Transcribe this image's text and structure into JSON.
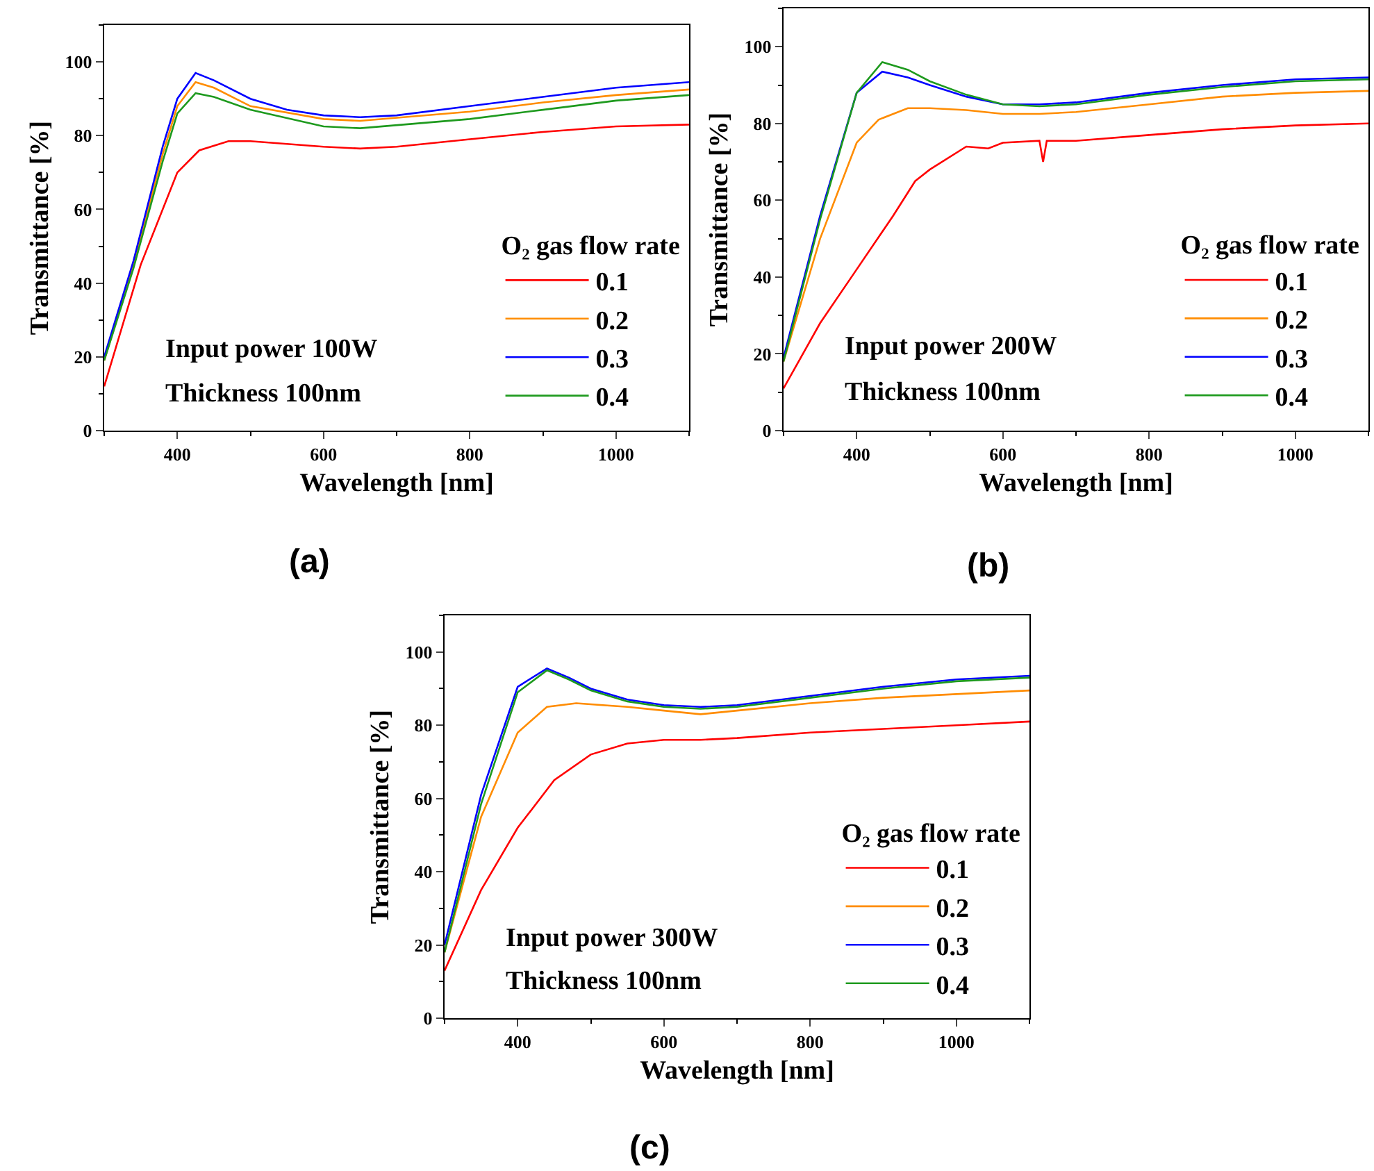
{
  "chart_data": [
    {
      "type": "line",
      "xlabel": "Wavelength [nm]",
      "ylabel": "Transmittance [%]",
      "legend_title": "O₂ gas flow rate",
      "legend": "bottom right",
      "grid": false,
      "xlim": [
        300,
        1100
      ],
      "ylim": [
        0,
        110
      ],
      "xticks": [
        400,
        600,
        800,
        1000
      ],
      "yticks": [
        0,
        20,
        40,
        60,
        80,
        100
      ],
      "annotations": [
        "Input power 100W",
        "Thickness 100nm",
        "(a)"
      ],
      "series": [
        {
          "name": "0.1",
          "color": "#ff0000",
          "x": [
            300,
            350,
            400,
            430,
            470,
            500,
            600,
            650,
            700,
            800,
            900,
            1000,
            1100
          ],
          "values": [
            12,
            45,
            70,
            76,
            78.5,
            78.5,
            77,
            76.5,
            77,
            79,
            81,
            82.5,
            83
          ]
        },
        {
          "name": "0.2",
          "color": "#ff8c00",
          "x": [
            300,
            340,
            380,
            400,
            425,
            450,
            500,
            600,
            650,
            800,
            900,
            1000,
            1100
          ],
          "values": [
            19,
            45,
            75,
            88,
            94.5,
            93,
            88,
            84.5,
            84,
            86.5,
            89,
            91,
            92.5
          ]
        },
        {
          "name": "0.3",
          "color": "#0000ff",
          "x": [
            300,
            340,
            380,
            400,
            425,
            450,
            500,
            550,
            600,
            650,
            700,
            800,
            900,
            1000,
            1100
          ],
          "values": [
            20,
            46,
            77,
            90,
            97,
            95,
            90,
            87,
            85.5,
            85,
            85.5,
            88,
            90.5,
            93,
            94.5
          ]
        },
        {
          "name": "0.4",
          "color": "#1e9a1e",
          "x": [
            300,
            340,
            380,
            400,
            425,
            450,
            500,
            600,
            650,
            800,
            900,
            1000,
            1100
          ],
          "values": [
            19,
            44,
            73,
            86,
            91.5,
            90.5,
            87,
            82.5,
            82,
            84.5,
            87,
            89.5,
            91
          ]
        }
      ]
    },
    {
      "type": "line",
      "xlabel": "Wavelength [nm]",
      "ylabel": "Transmittance [%]",
      "legend_title": "O₂ gas flow rate",
      "legend": "bottom right",
      "grid": false,
      "xlim": [
        300,
        1100
      ],
      "ylim": [
        0,
        110
      ],
      "xticks": [
        400,
        600,
        800,
        1000
      ],
      "yticks": [
        0,
        20,
        40,
        60,
        80,
        100
      ],
      "annotations": [
        "Input power 200W",
        "Thickness 100nm",
        "(b)"
      ],
      "series": [
        {
          "name": "0.1",
          "color": "#ff0000",
          "x": [
            300,
            350,
            400,
            450,
            480,
            500,
            550,
            580,
            600,
            650,
            655,
            660,
            700,
            800,
            900,
            1000,
            1100
          ],
          "values": [
            11,
            28,
            42,
            56,
            65,
            68,
            74,
            73.5,
            75,
            75.5,
            70,
            75.5,
            75.5,
            77,
            78.5,
            79.5,
            80
          ]
        },
        {
          "name": "0.2",
          "color": "#ff8c00",
          "x": [
            300,
            350,
            400,
            430,
            470,
            500,
            550,
            600,
            650,
            700,
            800,
            900,
            1000,
            1100
          ],
          "values": [
            18,
            50,
            75,
            81,
            84,
            84,
            83.5,
            82.5,
            82.5,
            83,
            85,
            87,
            88,
            88.5
          ]
        },
        {
          "name": "0.3",
          "color": "#0000ff",
          "x": [
            300,
            350,
            400,
            435,
            470,
            500,
            550,
            600,
            650,
            700,
            800,
            900,
            1000,
            1100
          ],
          "values": [
            19,
            56,
            88,
            93.5,
            92,
            90,
            87,
            85,
            85,
            85.5,
            88,
            90,
            91.5,
            92
          ]
        },
        {
          "name": "0.4",
          "color": "#1e9a1e",
          "x": [
            300,
            350,
            400,
            435,
            470,
            500,
            550,
            600,
            650,
            700,
            800,
            900,
            1000,
            1100
          ],
          "values": [
            18,
            55,
            88,
            96,
            94,
            91,
            87.5,
            85,
            84.5,
            85,
            87.5,
            89.5,
            91,
            91.5
          ]
        }
      ]
    },
    {
      "type": "line",
      "xlabel": "Wavelength [nm]",
      "ylabel": "Transmittance [%]",
      "legend_title": "O₂ gas flow rate",
      "legend": "bottom right",
      "grid": false,
      "xlim": [
        300,
        1100
      ],
      "ylim": [
        0,
        110
      ],
      "xticks": [
        400,
        600,
        800,
        1000
      ],
      "yticks": [
        0,
        20,
        40,
        60,
        80,
        100
      ],
      "annotations": [
        "Input power 300W",
        "Thickness 100nm",
        "(c)"
      ],
      "series": [
        {
          "name": "0.1",
          "color": "#ff0000",
          "x": [
            300,
            350,
            400,
            450,
            500,
            550,
            600,
            650,
            700,
            800,
            900,
            1000,
            1100
          ],
          "values": [
            13,
            35,
            52,
            65,
            72,
            75,
            76,
            76,
            76.5,
            78,
            79,
            80,
            81
          ]
        },
        {
          "name": "0.2",
          "color": "#ff8c00",
          "x": [
            300,
            350,
            400,
            440,
            480,
            550,
            600,
            650,
            700,
            800,
            900,
            1000,
            1100
          ],
          "values": [
            18,
            55,
            78,
            85,
            86,
            85,
            84,
            83,
            84,
            86,
            87.5,
            88.5,
            89.5
          ]
        },
        {
          "name": "0.3",
          "color": "#0000ff",
          "x": [
            300,
            350,
            400,
            440,
            470,
            500,
            550,
            600,
            650,
            700,
            800,
            900,
            1000,
            1100
          ],
          "values": [
            20,
            61,
            90.5,
            95.5,
            93,
            90,
            87,
            85.5,
            85,
            85.5,
            88,
            90.5,
            92.5,
            93.5
          ]
        },
        {
          "name": "0.4",
          "color": "#1e9a1e",
          "x": [
            300,
            350,
            400,
            440,
            470,
            500,
            550,
            600,
            650,
            700,
            800,
            900,
            1000,
            1100
          ],
          "values": [
            18,
            58.5,
            89,
            95,
            92.5,
            89.5,
            86.5,
            85,
            84.5,
            85,
            87.5,
            90,
            92,
            93
          ]
        }
      ]
    }
  ]
}
